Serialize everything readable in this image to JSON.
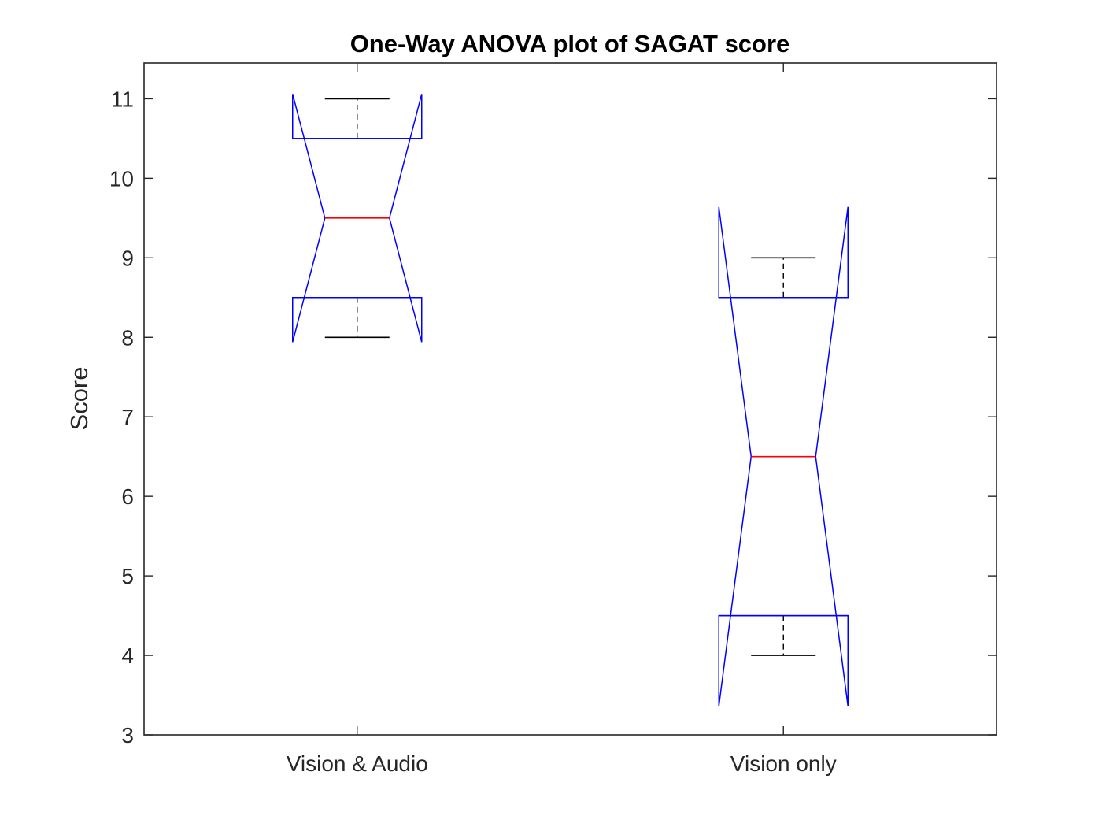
{
  "chart_data": {
    "type": "boxplot",
    "title": "One-Way ANOVA plot of SAGAT score",
    "xlabel": "",
    "ylabel": "Score",
    "ylim": [
      3,
      11.45
    ],
    "yticks": [
      3,
      4,
      5,
      6,
      7,
      8,
      9,
      10,
      11
    ],
    "categories": [
      "Vision & Audio",
      "Vision only"
    ],
    "boxes": [
      {
        "category": "Vision & Audio",
        "whisker_low": 8,
        "q1": 8.5,
        "median": 9.5,
        "q3": 10.5,
        "whisker_high": 11,
        "notch_low": 7.94,
        "notch_high": 11.06
      },
      {
        "category": "Vision only",
        "whisker_low": 4,
        "q1": 4.5,
        "median": 6.5,
        "q3": 8.5,
        "whisker_high": 9,
        "notch_low": 3.36,
        "notch_high": 9.64
      }
    ],
    "grid": false,
    "colors": {
      "box": "#0000ff",
      "median": "#ff0000",
      "whisker": "#000000",
      "axis": "#262626"
    }
  }
}
